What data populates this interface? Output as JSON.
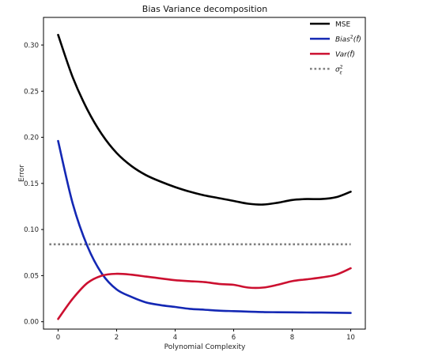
{
  "chart_data": {
    "type": "line",
    "title": "Bias Variance decomposition",
    "xlabel": "Polynomial Complexity",
    "ylabel": "Error",
    "xlim": [
      -0.5,
      10.5
    ],
    "ylim": [
      -0.008,
      0.33
    ],
    "xticks": [
      0,
      2,
      4,
      6,
      8,
      10
    ],
    "xtick_labels": [
      "0",
      "2",
      "4",
      "6",
      "8",
      "10"
    ],
    "yticks": [
      0.0,
      0.05,
      0.1,
      0.15,
      0.2,
      0.25,
      0.3
    ],
    "ytick_labels": [
      "0.00",
      "0.05",
      "0.10",
      "0.15",
      "0.20",
      "0.25",
      "0.30"
    ],
    "grid": false,
    "legend_position": "top-right",
    "series": [
      {
        "name": "MSE",
        "color": "#000000",
        "style": "solid",
        "x": [
          0,
          0.5,
          1,
          1.5,
          2,
          2.5,
          3,
          3.5,
          4,
          4.5,
          5,
          5.5,
          6,
          6.5,
          7,
          7.5,
          8,
          8.5,
          9,
          9.5,
          10
        ],
        "y": [
          0.311,
          0.265,
          0.23,
          0.203,
          0.183,
          0.169,
          0.159,
          0.152,
          0.146,
          0.141,
          0.137,
          0.134,
          0.131,
          0.128,
          0.127,
          0.129,
          0.132,
          0.133,
          0.133,
          0.135,
          0.141
        ]
      },
      {
        "name": "Bias²(f̂)",
        "legend_main": "Bias",
        "legend_sup": "2",
        "legend_tail": "(f̂)",
        "color": "#1428b4",
        "style": "solid",
        "x": [
          0,
          0.5,
          1,
          1.5,
          2,
          2.5,
          3,
          3.5,
          4,
          4.5,
          5,
          5.5,
          6,
          6.5,
          7,
          7.5,
          8,
          8.5,
          9,
          9.5,
          10
        ],
        "y": [
          0.196,
          0.128,
          0.082,
          0.052,
          0.035,
          0.027,
          0.021,
          0.018,
          0.016,
          0.014,
          0.013,
          0.012,
          0.0115,
          0.011,
          0.0105,
          0.0103,
          0.0102,
          0.01,
          0.0099,
          0.0098,
          0.0095
        ]
      },
      {
        "name": "Var(f̂)",
        "legend_main": "Var",
        "legend_tail": "(f̂)",
        "color": "#cc1030",
        "style": "solid",
        "x": [
          0,
          0.5,
          1,
          1.5,
          2,
          2.5,
          3,
          3.5,
          4,
          4.5,
          5,
          5.5,
          6,
          6.5,
          7,
          7.5,
          8,
          8.5,
          9,
          9.5,
          10
        ],
        "y": [
          0.003,
          0.025,
          0.042,
          0.05,
          0.052,
          0.051,
          0.049,
          0.047,
          0.045,
          0.044,
          0.043,
          0.041,
          0.04,
          0.037,
          0.037,
          0.04,
          0.044,
          0.046,
          0.048,
          0.051,
          0.058
        ]
      },
      {
        "name": "σε²",
        "legend_main": "σ",
        "legend_sup": "2",
        "legend_sub": "ε",
        "color": "#808080",
        "style": "dotted",
        "x": [
          -0.3,
          10
        ],
        "y": [
          0.084,
          0.084
        ]
      }
    ]
  }
}
